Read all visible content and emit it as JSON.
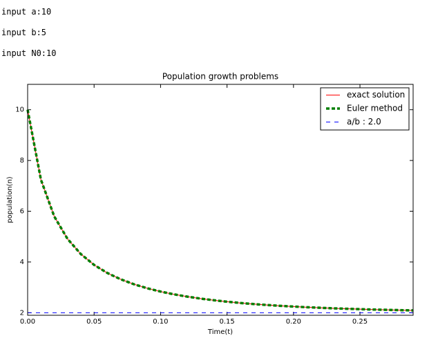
{
  "inputs": [
    "input a:10",
    "input b:5",
    "input N0:10"
  ],
  "chart_data": {
    "type": "line",
    "title": "Population growth problems",
    "x_label": "Time(t)",
    "y_label": "population(n)",
    "x": [
      0,
      0.01,
      0.02,
      0.03,
      0.04,
      0.05,
      0.06,
      0.07,
      0.08,
      0.09,
      0.1,
      0.11,
      0.12,
      0.13,
      0.14,
      0.15,
      0.16,
      0.17,
      0.18,
      0.19,
      0.2,
      0.21,
      0.22,
      0.23,
      0.24,
      0.25,
      0.26,
      0.27,
      0.28,
      0.29
    ],
    "series": [
      {
        "name": "exact solution",
        "color": "#ff0000",
        "values": [
          10,
          7.243,
          5.797,
          4.91,
          4.313,
          3.885,
          3.565,
          3.318,
          3.122,
          2.964,
          2.834,
          2.726,
          2.635,
          2.558,
          2.492,
          2.435,
          2.385,
          2.342,
          2.305,
          2.272,
          2.243,
          2.217,
          2.195,
          2.174,
          2.157,
          2.141,
          2.126,
          2.114,
          2.102,
          2.092
        ]
      },
      {
        "name": "Euler method",
        "color": "#007f00",
        "values": [
          10,
          7.243,
          5.797,
          4.91,
          4.313,
          3.885,
          3.565,
          3.318,
          3.122,
          2.964,
          2.834,
          2.726,
          2.635,
          2.558,
          2.492,
          2.435,
          2.385,
          2.342,
          2.305,
          2.272,
          2.243,
          2.217,
          2.195,
          2.174,
          2.157,
          2.141,
          2.126,
          2.114,
          2.102,
          2.092
        ]
      },
      {
        "name": "a/b : 2.0",
        "color": "#0000ff",
        "values": [
          2,
          2,
          2,
          2,
          2,
          2,
          2,
          2,
          2,
          2,
          2,
          2,
          2,
          2,
          2,
          2,
          2,
          2,
          2,
          2,
          2,
          2,
          2,
          2,
          2,
          2,
          2,
          2,
          2,
          2
        ]
      }
    ],
    "xlim": [
      0,
      0.29
    ],
    "ylim": [
      1.9,
      11
    ],
    "xticks": [
      {
        "value": 0,
        "label": "0.00"
      },
      0.05,
      {
        "value": 0.1,
        "label": "0.10"
      },
      0.15,
      {
        "value": 0.2,
        "label": "0.20"
      },
      0.25
    ],
    "yticks": [
      2,
      4,
      6,
      8,
      10
    ],
    "legend": "upper right"
  }
}
